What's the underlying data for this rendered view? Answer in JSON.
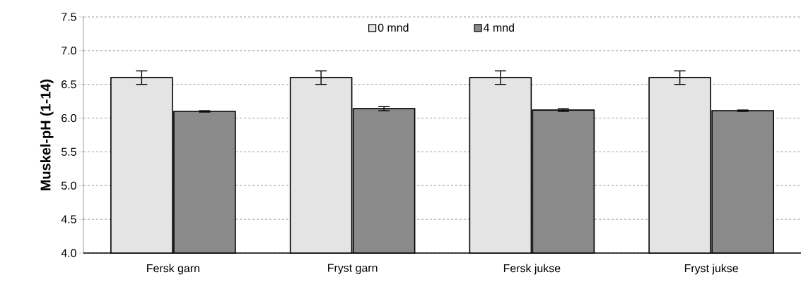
{
  "chart_data": {
    "type": "bar",
    "ylabel": "Muskel-pH (1-14)",
    "categories": [
      "Fersk garn",
      "Fryst garn",
      "Fersk jukse",
      "Fryst jukse"
    ],
    "series": [
      {
        "name": "0 mnd",
        "color": "#e4e4e4",
        "values": [
          6.6,
          6.6,
          6.6,
          6.6
        ],
        "errors": [
          0.1,
          0.1,
          0.1,
          0.1
        ]
      },
      {
        "name": "4 mnd",
        "color": "#8a8a8a",
        "values": [
          6.1,
          6.14,
          6.12,
          6.11
        ],
        "errors": [
          0.01,
          0.03,
          0.02,
          0.01
        ]
      }
    ],
    "ylim": [
      4.0,
      7.5
    ],
    "yticks": [
      {
        "value": 4.0,
        "label": "4.0"
      },
      {
        "value": 4.5,
        "label": "4.5"
      },
      {
        "value": 5.0,
        "label": "5.0"
      },
      {
        "value": 5.5,
        "label": "5.5"
      },
      {
        "value": 6.0,
        "label": "6.0"
      },
      {
        "value": 6.5,
        "label": "6.5"
      },
      {
        "value": 7.0,
        "label": "7.0"
      },
      {
        "value": 7.5,
        "label": "7.5"
      }
    ],
    "grid": "y",
    "legend": "top"
  }
}
